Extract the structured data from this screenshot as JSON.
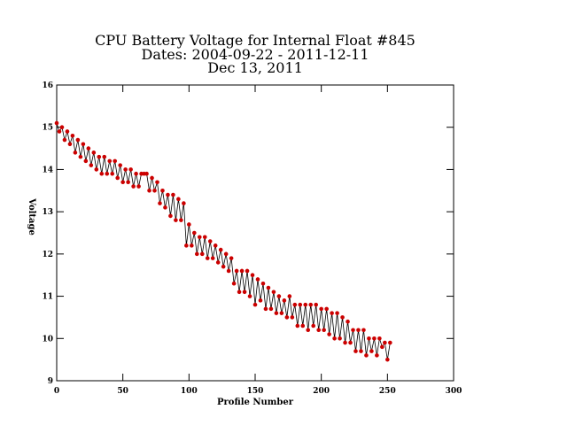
{
  "chart_data": {
    "type": "line",
    "title": [
      "CPU Battery Voltage for Internal Float #845",
      "Dates:  2004-09-22 -  2011-12-11",
      "Dec 13, 2011"
    ],
    "xlabel": "Profile Number",
    "ylabel": "Voltage",
    "xlim": [
      0,
      300
    ],
    "xticks": [
      0,
      50,
      100,
      150,
      200,
      250,
      300
    ],
    "ylim": [
      9,
      16
    ],
    "yticks": [
      9,
      10,
      11,
      12,
      13,
      14,
      15,
      16
    ],
    "line_color": "#000000",
    "marker_color": "#cc0000",
    "x": [
      0,
      2,
      4,
      6,
      8,
      10,
      12,
      14,
      16,
      18,
      20,
      22,
      24,
      26,
      28,
      30,
      32,
      34,
      36,
      38,
      40,
      42,
      44,
      46,
      48,
      50,
      52,
      54,
      56,
      58,
      60,
      62,
      64,
      66,
      68,
      70,
      72,
      74,
      76,
      78,
      80,
      82,
      84,
      86,
      88,
      90,
      92,
      94,
      96,
      98,
      100,
      102,
      104,
      106,
      108,
      110,
      112,
      114,
      116,
      118,
      120,
      122,
      124,
      126,
      128,
      130,
      132,
      134,
      136,
      138,
      140,
      142,
      144,
      146,
      148,
      150,
      152,
      154,
      156,
      158,
      160,
      162,
      164,
      166,
      168,
      170,
      172,
      174,
      176,
      178,
      180,
      182,
      184,
      186,
      188,
      190,
      192,
      194,
      196,
      198,
      200,
      202,
      204,
      206,
      208,
      210,
      212,
      214,
      216,
      218,
      220,
      222,
      224,
      226,
      228,
      230,
      232,
      234,
      236,
      238,
      240,
      242,
      244,
      246,
      248,
      250,
      252
    ],
    "values": [
      15.1,
      14.9,
      15.0,
      14.7,
      14.9,
      14.6,
      14.8,
      14.4,
      14.7,
      14.3,
      14.6,
      14.2,
      14.5,
      14.1,
      14.4,
      14.0,
      14.3,
      13.9,
      14.3,
      13.9,
      14.2,
      13.9,
      14.2,
      13.8,
      14.1,
      13.7,
      14.0,
      13.7,
      14.0,
      13.6,
      13.9,
      13.6,
      13.9,
      13.9,
      13.9,
      13.5,
      13.8,
      13.5,
      13.7,
      13.2,
      13.5,
      13.1,
      13.4,
      12.9,
      13.4,
      12.8,
      13.3,
      12.8,
      13.2,
      12.2,
      12.7,
      12.2,
      12.5,
      12.0,
      12.4,
      12.0,
      12.4,
      11.9,
      12.3,
      11.9,
      12.2,
      11.8,
      12.1,
      11.7,
      12.0,
      11.6,
      11.9,
      11.3,
      11.6,
      11.1,
      11.6,
      11.1,
      11.6,
      11.0,
      11.5,
      10.8,
      11.4,
      10.9,
      11.3,
      10.7,
      11.2,
      10.7,
      11.1,
      10.6,
      11.0,
      10.6,
      10.9,
      10.5,
      11.0,
      10.5,
      10.8,
      10.3,
      10.8,
      10.3,
      10.8,
      10.2,
      10.8,
      10.3,
      10.8,
      10.2,
      10.7,
      10.2,
      10.7,
      10.1,
      10.6,
      10.0,
      10.6,
      10.0,
      10.5,
      9.9,
      10.4,
      9.9,
      10.2,
      9.7,
      10.2,
      9.7,
      10.2,
      9.6,
      10.0,
      9.7,
      10.0,
      9.6,
      10.0,
      9.8,
      9.9,
      9.5,
      9.9
    ]
  }
}
